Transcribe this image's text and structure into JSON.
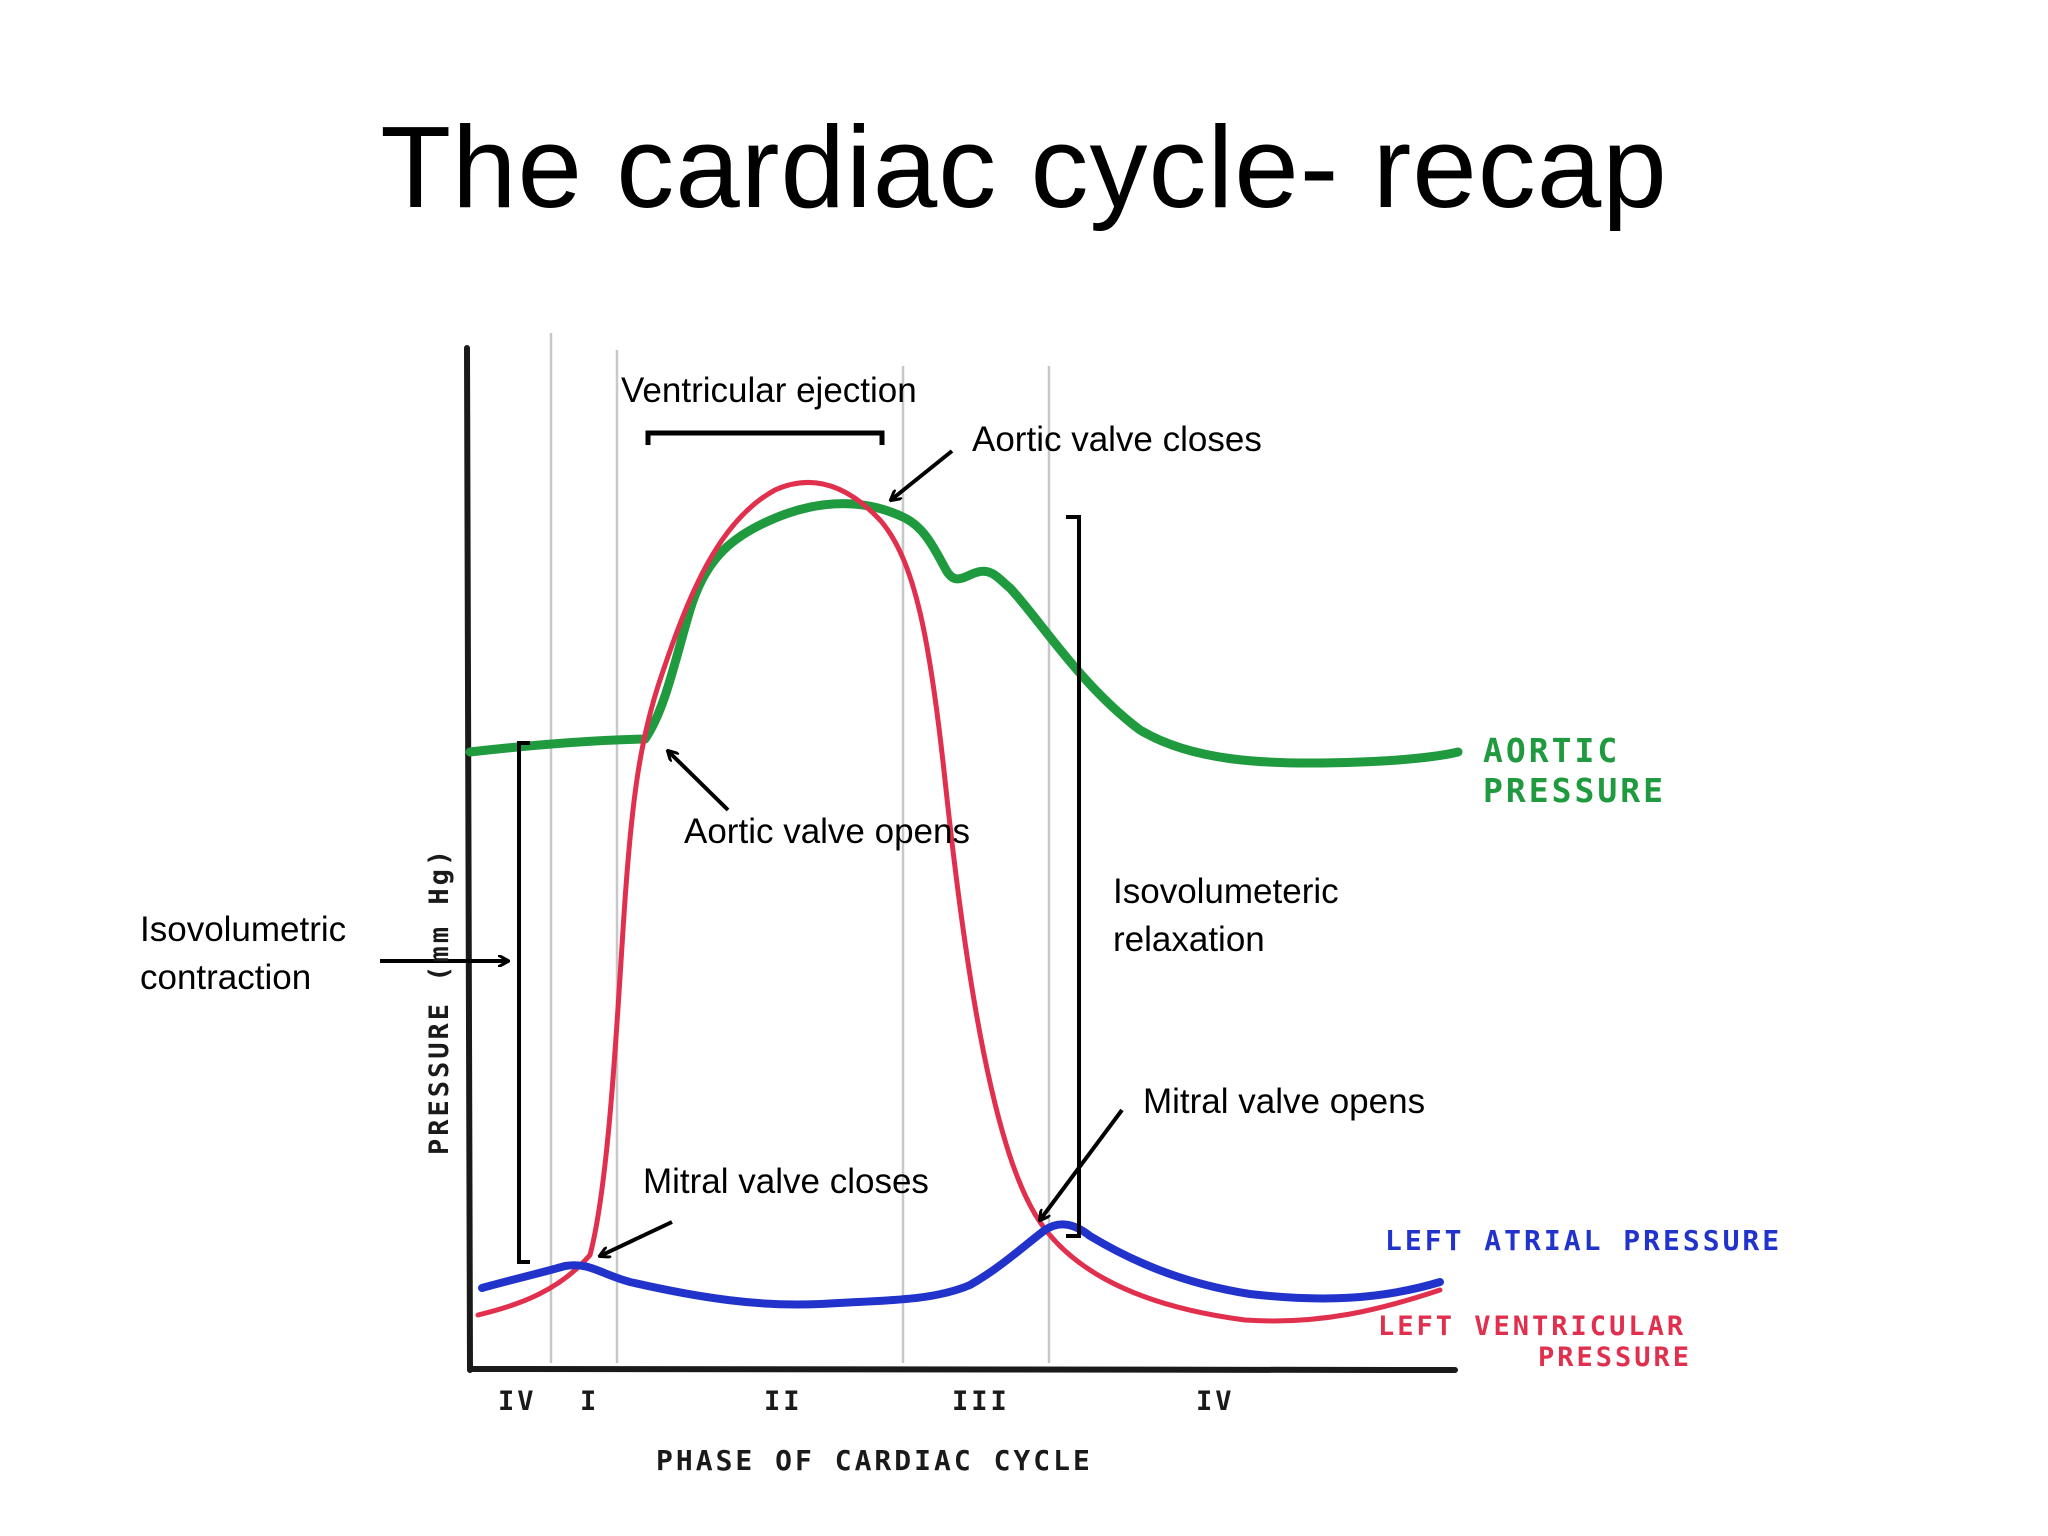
{
  "slide": {
    "title": "The cardiac cycle- recap"
  },
  "axes": {
    "y_label": "PRESSURE (mm Hg)",
    "x_label": "PHASE OF CARDIAC CYCLE",
    "phases": [
      "IV",
      "I",
      "II",
      "III",
      "IV"
    ]
  },
  "curves": {
    "aortic": {
      "label_line1": "AORTIC",
      "label_line2": "PRESSURE",
      "color": "#1f9a3e"
    },
    "left_atrial": {
      "label": "LEFT ATRIAL PRESSURE",
      "color": "#2233cc"
    },
    "left_ventricular": {
      "label_line1": "LEFT VENTRICULAR",
      "label_line2": "PRESSURE",
      "color": "#e0304e"
    }
  },
  "annotations": {
    "ventricular_ejection": "Ventricular ejection",
    "aortic_valve_closes": "Aortic valve closes",
    "aortic_valve_opens": "Aortic valve opens",
    "isovolumetric_contraction_line1": "Isovolumetric",
    "isovolumetric_contraction_line2": "contraction",
    "isovolumeteric_relaxation_line1": "Isovolumeteric",
    "isovolumeteric_relaxation_line2": "relaxation",
    "mitral_valve_opens": "Mitral valve opens",
    "mitral_valve_closes": "Mitral valve closes"
  }
}
